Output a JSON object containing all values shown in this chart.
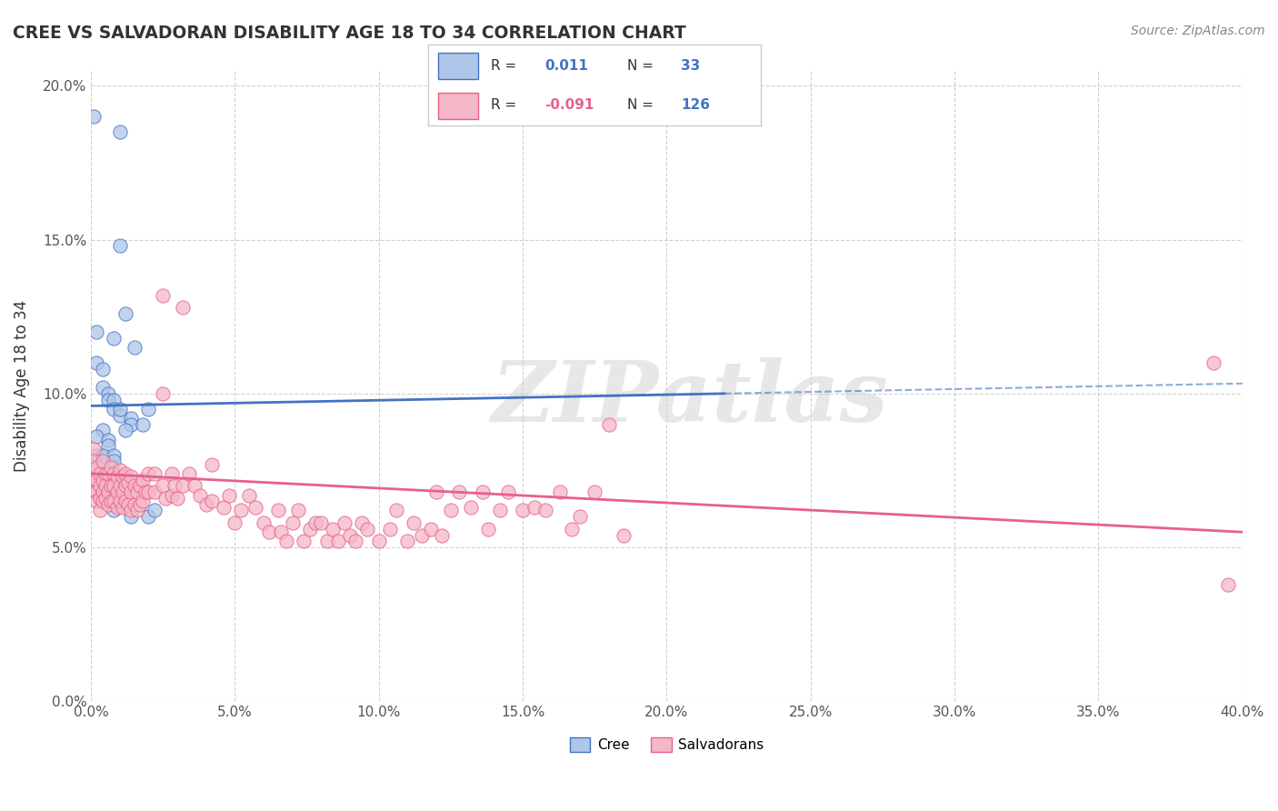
{
  "title": "CREE VS SALVADORAN DISABILITY AGE 18 TO 34 CORRELATION CHART",
  "source": "Source: ZipAtlas.com",
  "ylabel": "Disability Age 18 to 34",
  "xlim": [
    0.0,
    0.4
  ],
  "ylim": [
    0.0,
    0.205
  ],
  "xticks": [
    0.0,
    0.05,
    0.1,
    0.15,
    0.2,
    0.25,
    0.3,
    0.35,
    0.4
  ],
  "yticks": [
    0.0,
    0.05,
    0.1,
    0.15,
    0.2
  ],
  "xtick_labels": [
    "0.0%",
    "5.0%",
    "10.0%",
    "15.0%",
    "20.0%",
    "25.0%",
    "30.0%",
    "35.0%",
    "40.0%"
  ],
  "ytick_labels": [
    "0.0%",
    "5.0%",
    "10.0%",
    "15.0%",
    "20.0%"
  ],
  "cree_R": 0.011,
  "cree_N": 33,
  "salv_R": -0.091,
  "salv_N": 126,
  "cree_color": "#aec6e8",
  "cree_line_color": "#4472c4",
  "salv_color": "#f4b8c8",
  "salv_line_color": "#e8608a",
  "background_color": "#ffffff",
  "grid_color": "#cccccc",
  "watermark_text": "ZIPatlas",
  "legend_R_neg_color": "#e8608a",
  "legend_val_color": "#4472c4",
  "cree_dots": [
    [
      0.001,
      0.19
    ],
    [
      0.01,
      0.185
    ],
    [
      0.01,
      0.148
    ],
    [
      0.012,
      0.126
    ],
    [
      0.002,
      0.12
    ],
    [
      0.008,
      0.118
    ],
    [
      0.015,
      0.115
    ],
    [
      0.002,
      0.11
    ],
    [
      0.004,
      0.108
    ],
    [
      0.004,
      0.102
    ],
    [
      0.006,
      0.1
    ],
    [
      0.006,
      0.098
    ],
    [
      0.008,
      0.098
    ],
    [
      0.008,
      0.095
    ],
    [
      0.01,
      0.093
    ],
    [
      0.014,
      0.092
    ],
    [
      0.014,
      0.09
    ],
    [
      0.004,
      0.088
    ],
    [
      0.002,
      0.086
    ],
    [
      0.006,
      0.085
    ],
    [
      0.006,
      0.083
    ],
    [
      0.002,
      0.08
    ],
    [
      0.004,
      0.08
    ],
    [
      0.008,
      0.08
    ],
    [
      0.008,
      0.078
    ],
    [
      0.01,
      0.095
    ],
    [
      0.012,
      0.088
    ],
    [
      0.02,
      0.095
    ],
    [
      0.018,
      0.09
    ],
    [
      0.008,
      0.062
    ],
    [
      0.014,
      0.06
    ],
    [
      0.02,
      0.06
    ],
    [
      0.022,
      0.062
    ]
  ],
  "salv_dots": [
    [
      0.001,
      0.082
    ],
    [
      0.001,
      0.078
    ],
    [
      0.001,
      0.075
    ],
    [
      0.001,
      0.072
    ],
    [
      0.001,
      0.07
    ],
    [
      0.001,
      0.068
    ],
    [
      0.002,
      0.076
    ],
    [
      0.002,
      0.072
    ],
    [
      0.002,
      0.068
    ],
    [
      0.002,
      0.065
    ],
    [
      0.003,
      0.074
    ],
    [
      0.003,
      0.07
    ],
    [
      0.003,
      0.066
    ],
    [
      0.003,
      0.062
    ],
    [
      0.004,
      0.078
    ],
    [
      0.004,
      0.072
    ],
    [
      0.004,
      0.068
    ],
    [
      0.004,
      0.065
    ],
    [
      0.005,
      0.074
    ],
    [
      0.005,
      0.07
    ],
    [
      0.005,
      0.066
    ],
    [
      0.006,
      0.074
    ],
    [
      0.006,
      0.068
    ],
    [
      0.006,
      0.064
    ],
    [
      0.007,
      0.076
    ],
    [
      0.007,
      0.07
    ],
    [
      0.007,
      0.065
    ],
    [
      0.008,
      0.074
    ],
    [
      0.008,
      0.07
    ],
    [
      0.008,
      0.065
    ],
    [
      0.009,
      0.073
    ],
    [
      0.009,
      0.068
    ],
    [
      0.009,
      0.063
    ],
    [
      0.01,
      0.075
    ],
    [
      0.01,
      0.07
    ],
    [
      0.01,
      0.065
    ],
    [
      0.011,
      0.073
    ],
    [
      0.011,
      0.068
    ],
    [
      0.011,
      0.063
    ],
    [
      0.012,
      0.074
    ],
    [
      0.012,
      0.07
    ],
    [
      0.012,
      0.065
    ],
    [
      0.013,
      0.071
    ],
    [
      0.013,
      0.064
    ],
    [
      0.014,
      0.073
    ],
    [
      0.014,
      0.068
    ],
    [
      0.014,
      0.062
    ],
    [
      0.015,
      0.07
    ],
    [
      0.015,
      0.064
    ],
    [
      0.016,
      0.068
    ],
    [
      0.016,
      0.062
    ],
    [
      0.017,
      0.07
    ],
    [
      0.017,
      0.064
    ],
    [
      0.018,
      0.072
    ],
    [
      0.018,
      0.065
    ],
    [
      0.019,
      0.068
    ],
    [
      0.02,
      0.074
    ],
    [
      0.02,
      0.068
    ],
    [
      0.022,
      0.074
    ],
    [
      0.022,
      0.068
    ],
    [
      0.025,
      0.132
    ],
    [
      0.025,
      0.1
    ],
    [
      0.025,
      0.07
    ],
    [
      0.026,
      0.066
    ],
    [
      0.028,
      0.074
    ],
    [
      0.028,
      0.067
    ],
    [
      0.029,
      0.07
    ],
    [
      0.03,
      0.066
    ],
    [
      0.032,
      0.128
    ],
    [
      0.032,
      0.07
    ],
    [
      0.034,
      0.074
    ],
    [
      0.036,
      0.07
    ],
    [
      0.038,
      0.067
    ],
    [
      0.04,
      0.064
    ],
    [
      0.042,
      0.077
    ],
    [
      0.042,
      0.065
    ],
    [
      0.046,
      0.063
    ],
    [
      0.048,
      0.067
    ],
    [
      0.05,
      0.058
    ],
    [
      0.052,
      0.062
    ],
    [
      0.055,
      0.067
    ],
    [
      0.057,
      0.063
    ],
    [
      0.06,
      0.058
    ],
    [
      0.062,
      0.055
    ],
    [
      0.065,
      0.062
    ],
    [
      0.066,
      0.055
    ],
    [
      0.068,
      0.052
    ],
    [
      0.07,
      0.058
    ],
    [
      0.072,
      0.062
    ],
    [
      0.074,
      0.052
    ],
    [
      0.076,
      0.056
    ],
    [
      0.078,
      0.058
    ],
    [
      0.08,
      0.058
    ],
    [
      0.082,
      0.052
    ],
    [
      0.084,
      0.056
    ],
    [
      0.086,
      0.052
    ],
    [
      0.088,
      0.058
    ],
    [
      0.09,
      0.054
    ],
    [
      0.092,
      0.052
    ],
    [
      0.094,
      0.058
    ],
    [
      0.096,
      0.056
    ],
    [
      0.1,
      0.052
    ],
    [
      0.104,
      0.056
    ],
    [
      0.106,
      0.062
    ],
    [
      0.11,
      0.052
    ],
    [
      0.112,
      0.058
    ],
    [
      0.115,
      0.054
    ],
    [
      0.118,
      0.056
    ],
    [
      0.12,
      0.068
    ],
    [
      0.122,
      0.054
    ],
    [
      0.125,
      0.062
    ],
    [
      0.128,
      0.068
    ],
    [
      0.132,
      0.063
    ],
    [
      0.136,
      0.068
    ],
    [
      0.138,
      0.056
    ],
    [
      0.142,
      0.062
    ],
    [
      0.145,
      0.068
    ],
    [
      0.15,
      0.062
    ],
    [
      0.154,
      0.063
    ],
    [
      0.158,
      0.062
    ],
    [
      0.163,
      0.068
    ],
    [
      0.167,
      0.056
    ],
    [
      0.17,
      0.06
    ],
    [
      0.175,
      0.068
    ],
    [
      0.18,
      0.09
    ],
    [
      0.185,
      0.054
    ],
    [
      0.39,
      0.11
    ],
    [
      0.395,
      0.038
    ]
  ],
  "cree_trend_x": [
    0.0,
    0.22
  ],
  "cree_trend_y": [
    0.096,
    0.1
  ],
  "salv_trend_x": [
    0.0,
    0.4
  ],
  "salv_trend_y": [
    0.074,
    0.055
  ]
}
